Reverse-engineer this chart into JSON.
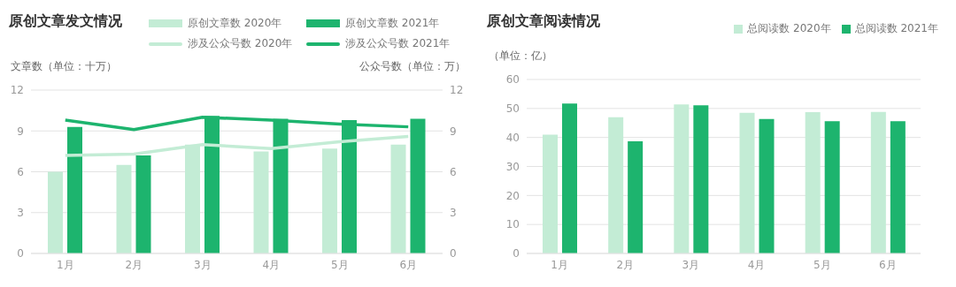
{
  "chart_data": [
    {
      "type": "bar",
      "title": "原创文章发文情况",
      "ylabel": "文章数（单位：十万）",
      "y2label": "公众号数（单位：万）",
      "categories": [
        "1月",
        "2月",
        "3月",
        "4月",
        "5月",
        "6月"
      ],
      "series": [
        {
          "name": "原创文章数 2020年",
          "color": "#c3ecd5",
          "values": [
            6.0,
            6.5,
            8.0,
            7.5,
            7.7,
            8.0
          ]
        },
        {
          "name": "原创文章数 2021年",
          "color": "#1db46e",
          "values": [
            9.3,
            7.2,
            10.1,
            9.9,
            9.8,
            9.9
          ]
        },
        {
          "name": "涉及公众号数 2020年",
          "type": "line",
          "axis": "y2",
          "color": "#c3ecd5",
          "values": [
            7.2,
            7.3,
            8.0,
            7.7,
            8.2,
            8.6
          ]
        },
        {
          "name": "涉及公众号数 2021年",
          "type": "line",
          "axis": "y2",
          "color": "#1db46e",
          "values": [
            9.8,
            9.1,
            10.0,
            9.8,
            9.5,
            9.3
          ]
        }
      ],
      "ylim": [
        0,
        12
      ],
      "yticks": [
        0,
        3,
        6,
        9,
        12
      ],
      "y2lim": [
        0,
        12
      ],
      "y2ticks": [
        0,
        3,
        6,
        9,
        12
      ],
      "grid": "y",
      "legend": "top",
      "marker": "none"
    },
    {
      "type": "bar",
      "title": "原创文章阅读情况",
      "ylabel": "（单位：亿）",
      "categories": [
        "1月",
        "2月",
        "3月",
        "4月",
        "5月",
        "6月"
      ],
      "series": [
        {
          "name": "总阅读数 2020年",
          "color": "#c3ecd5",
          "values": [
            41,
            47,
            51.4,
            48.5,
            48.7,
            48.8
          ]
        },
        {
          "name": "总阅读数 2021年",
          "color": "#1db46e",
          "values": [
            51.7,
            38.7,
            51.1,
            46.4,
            45.6,
            45.6
          ]
        }
      ],
      "ylim": [
        0,
        60
      ],
      "yticks": [
        0,
        10,
        20,
        30,
        40,
        50,
        60
      ],
      "grid": "y",
      "legend": "top right"
    }
  ]
}
